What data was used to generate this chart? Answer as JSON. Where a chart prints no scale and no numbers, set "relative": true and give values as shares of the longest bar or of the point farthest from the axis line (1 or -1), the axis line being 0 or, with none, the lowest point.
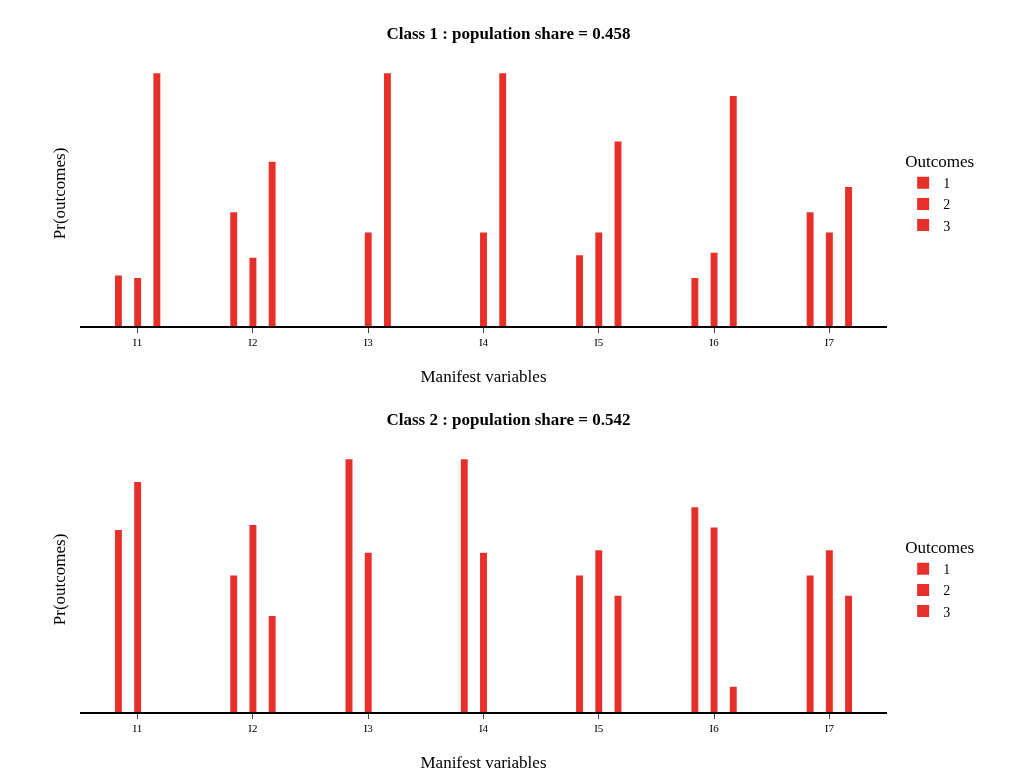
{
  "chart_data": [
    {
      "type": "bar",
      "title": "Class 1 : population share = 0.458",
      "xlabel": "Manifest variables",
      "ylabel": "Pr(outcomes)",
      "legend_title": "Outcomes",
      "relative": true,
      "legend": "right",
      "categories": [
        "I1",
        "I2",
        "I3",
        "I4",
        "I5",
        "I6",
        "I7"
      ],
      "series": [
        {
          "name": "1",
          "color": "#e8302a",
          "values": [
            0.2,
            0.45,
            0,
            0,
            0.28,
            0.19,
            0.45
          ]
        },
        {
          "name": "2",
          "color": "#e8302a",
          "values": [
            0.19,
            0.27,
            0.37,
            0.37,
            0.37,
            0.29,
            0.37
          ]
        },
        {
          "name": "3",
          "color": "#e8302a",
          "values": [
            1,
            0.65,
            1,
            1,
            0.73,
            0.91,
            0.55
          ]
        }
      ]
    },
    {
      "type": "bar",
      "title": "Class 2 : population share = 0.542",
      "xlabel": "Manifest variables",
      "ylabel": "Pr(outcomes)",
      "legend_title": "Outcomes",
      "relative": true,
      "legend": "right",
      "categories": [
        "I1",
        "I2",
        "I3",
        "I4",
        "I5",
        "I6",
        "I7"
      ],
      "series": [
        {
          "name": "1",
          "color": "#e8302a",
          "values": [
            0.72,
            0.54,
            1,
            1,
            0.54,
            0.81,
            0.54
          ]
        },
        {
          "name": "2",
          "color": "#e8302a",
          "values": [
            0.91,
            0.74,
            0.63,
            0.63,
            0.64,
            0.73,
            0.64
          ]
        },
        {
          "name": "3",
          "color": "#e8302a",
          "values": [
            0,
            0.38,
            0,
            0,
            0.46,
            0.1,
            0.46
          ]
        }
      ]
    }
  ]
}
